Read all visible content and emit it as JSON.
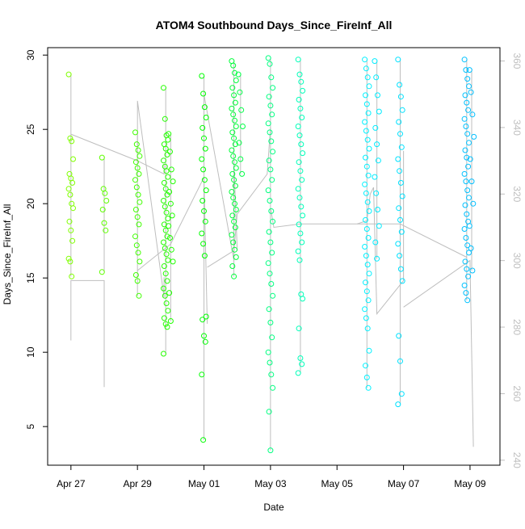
{
  "chart_data": {
    "type": "scatter",
    "title": "ATOM4 Southbound Days_Since_FireInf_All",
    "xlabel": "Date",
    "ylabel": "Days_Since_FireInf_All",
    "x_ticks": [
      "Apr 27",
      "Apr 29",
      "May 01",
      "May 03",
      "May 05",
      "May 07",
      "May 09"
    ],
    "y_ticks": [
      "5",
      "10",
      "15",
      "20",
      "25",
      "30"
    ],
    "y2_ticks": [
      "240",
      "260",
      "280",
      "300",
      "320",
      "340",
      "360"
    ],
    "xlim_days": [
      -0.7,
      12.9
    ],
    "ylim": [
      2.4,
      30.5
    ],
    "y2lim": [
      238.5,
      364
    ],
    "grid": false,
    "legend": "none",
    "point_style": "open circle",
    "line_color": "#bebebe",
    "color_scale": [
      "#7fff00",
      "#00ff00",
      "#00ffff",
      "#00bfff"
    ],
    "points": [
      {
        "d": 0.0,
        "y": [
          28.7,
          24.4,
          24.2,
          23.0,
          22.0,
          21.7,
          21.4,
          21.0,
          20.6,
          20.0,
          19.7,
          18.8,
          18.2,
          17.5,
          16.3,
          16.1,
          15.1
        ]
      },
      {
        "d": 1.0,
        "y": [
          23.1,
          21.0,
          20.7,
          20.2,
          19.6,
          18.7,
          18.2,
          15.4
        ]
      },
      {
        "d": 2.0,
        "y": [
          24.8,
          24.0,
          23.6,
          23.2,
          22.8,
          22.4,
          22.0,
          21.6,
          21.1,
          20.6,
          20.1,
          19.6,
          19.1,
          18.6,
          17.8,
          17.2,
          16.7,
          16.1,
          15.2,
          14.8,
          13.8
        ]
      },
      {
        "d": 2.85,
        "y": [
          27.8,
          25.7,
          24.6,
          24.3,
          24.0,
          23.7,
          23.3,
          22.9,
          22.5,
          22.2,
          21.8,
          21.4,
          21.0,
          20.6,
          20.2,
          19.8,
          19.4,
          19.0,
          18.6,
          18.2,
          17.8,
          17.4,
          17.0,
          16.6,
          16.2,
          15.8,
          15.3,
          14.8,
          14.3,
          13.8,
          13.3,
          12.8,
          12.3,
          11.9,
          11.7,
          9.9
        ]
      },
      {
        "d": 3.0,
        "y": [
          24.7,
          23.5,
          22.3,
          21.5,
          20.8,
          20.0,
          19.2,
          18.5,
          17.7,
          16.9,
          16.1,
          14.0,
          12.1
        ]
      },
      {
        "d": 4.0,
        "y": [
          28.6,
          27.4,
          26.5,
          25.8,
          25.1,
          24.4,
          23.7,
          23.0,
          22.3,
          21.6,
          20.9,
          20.2,
          19.5,
          18.8,
          18.0,
          17.3,
          16.5,
          12.4,
          12.2,
          11.1,
          10.7,
          8.5,
          4.1
        ]
      },
      {
        "d": 4.9,
        "y": [
          29.6,
          29.3,
          28.8,
          28.3,
          27.8,
          27.3,
          26.8,
          26.4,
          26.0,
          25.6,
          25.2,
          24.8,
          24.4,
          24.0,
          23.6,
          23.2,
          22.8,
          22.4,
          22.0,
          21.6,
          21.2,
          20.8,
          20.4,
          20.0,
          19.6,
          19.2,
          18.8,
          18.4,
          17.9,
          17.4,
          16.9,
          16.4,
          15.8,
          15.1
        ]
      },
      {
        "d": 5.1,
        "y": [
          28.7,
          27.5,
          26.3,
          25.2,
          24.1,
          23.0,
          22.0
        ]
      },
      {
        "d": 6.0,
        "y": [
          29.8,
          29.4,
          28.5,
          27.8,
          27.2,
          26.6,
          26.0,
          25.4,
          24.8,
          24.2,
          23.5,
          22.9,
          22.3,
          21.6,
          20.9,
          20.2,
          19.5,
          18.8,
          18.1,
          17.4,
          16.7,
          16.0,
          15.3,
          14.6,
          13.8,
          12.9,
          12.0,
          11.0,
          10.0,
          9.3,
          8.5,
          7.6,
          6.0,
          3.4
        ]
      },
      {
        "d": 6.9,
        "y": [
          29.7,
          28.7,
          28.2,
          27.6,
          27.0,
          26.4,
          25.8,
          25.2,
          24.6,
          24.0,
          23.4,
          22.8,
          22.2,
          21.6,
          21.0,
          20.4,
          19.8,
          19.2,
          18.6,
          18.0,
          17.4,
          16.8,
          16.2,
          13.9,
          13.6,
          11.6,
          9.6,
          9.2,
          8.6
        ]
      },
      {
        "d": 8.9,
        "y": [
          29.7,
          29.1,
          28.5,
          27.9,
          27.3,
          26.7,
          26.1,
          25.5,
          24.9,
          24.3,
          23.7,
          23.1,
          22.5,
          21.9,
          21.3,
          20.7,
          20.1,
          19.5,
          18.9,
          18.3,
          17.7,
          17.1,
          16.5,
          15.9,
          15.3,
          14.7,
          14.1,
          13.5,
          12.9,
          12.3,
          11.6,
          10.1,
          9.1,
          8.3,
          7.6
        ]
      },
      {
        "d": 9.2,
        "y": [
          29.6,
          28.5,
          27.3,
          26.2,
          25.1,
          24.0,
          22.9,
          21.8,
          20.7,
          19.6,
          18.5,
          17.4,
          16.3
        ]
      },
      {
        "d": 9.9,
        "y": [
          29.7,
          28.0,
          27.2,
          26.3,
          25.5,
          24.7,
          23.8,
          23.0,
          22.2,
          21.4,
          20.5,
          19.7,
          18.9,
          18.1,
          17.3,
          16.5,
          15.6,
          14.8,
          11.1,
          9.4,
          7.2,
          6.5
        ]
      },
      {
        "d": 11.9,
        "y": [
          29.7,
          29.0,
          28.4,
          27.9,
          27.3,
          26.8,
          26.3,
          25.7,
          25.2,
          24.7,
          24.1,
          23.6,
          23.1,
          22.5,
          22.0,
          21.5,
          20.9,
          20.4,
          19.9,
          19.3,
          18.8,
          18.3,
          17.7,
          17.2,
          16.7,
          16.1,
          15.6,
          15.1,
          14.5,
          14.0,
          13.5
        ]
      },
      {
        "d": 12.05,
        "y": [
          29.0,
          27.5,
          26.0,
          24.5,
          23.0,
          21.5,
          20.0,
          18.5,
          17.0,
          15.5
        ]
      }
    ],
    "lines": [
      {
        "d": [
          0.0,
          0.0,
          1.0,
          1.0
        ],
        "y2": [
          276,
          294,
          294,
          262
        ]
      },
      {
        "d": [
          0.0,
          2.0,
          2.8,
          2.8
        ],
        "y2": [
          338,
          330,
          326,
          329
        ]
      },
      {
        "d": [
          2.0,
          2.0,
          2.8,
          2.8
        ],
        "y2": [
          330,
          348,
          289,
          295
        ]
      },
      {
        "d": [
          2.0,
          3.0,
          4.0,
          4.1
        ],
        "y2": [
          297,
          305,
          325,
          281
        ]
      },
      {
        "d": [
          4.0,
          4.0,
          4.9,
          4.9,
          5.0
        ],
        "y2": [
          300,
          350,
          300,
          330,
          303
        ]
      },
      {
        "d": [
          4.1,
          4.9,
          5.0,
          5.9,
          6.0
        ],
        "y2": [
          298,
          303,
          314,
          326,
          340
        ]
      },
      {
        "d": [
          6.0,
          6.1,
          6.9,
          7.0,
          8.6
        ],
        "y2": [
          316,
          310,
          311,
          311,
          311
        ]
      },
      {
        "d": [
          8.6,
          8.9,
          9.0,
          9.1,
          9.2,
          10.0,
          10.0
        ],
        "y2": [
          311,
          312,
          320,
          322,
          284,
          294,
          333
        ]
      },
      {
        "d": [
          8.6,
          8.7,
          8.8,
          9.9,
          11.9
        ],
        "y2": [
          311,
          311,
          311,
          311,
          301
        ]
      },
      {
        "d": [
          10.0,
          12.0,
          12.1
        ],
        "y2": [
          286,
          300,
          244
        ]
      }
    ]
  }
}
